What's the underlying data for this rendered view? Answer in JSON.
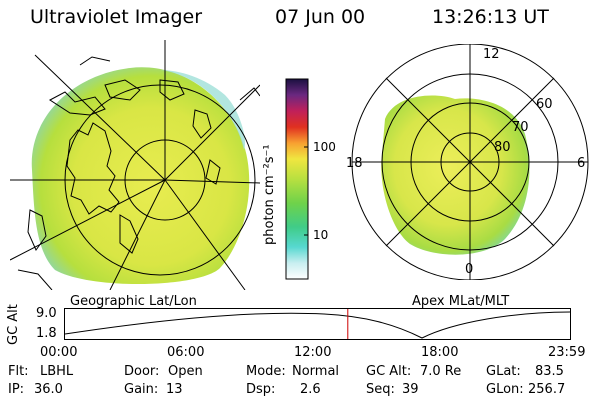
{
  "header": {
    "instrument": "Ultraviolet Imager",
    "date": "07 Jun 00",
    "time": "13:26:13 UT"
  },
  "colorbar": {
    "unit_label": "photon cm⁻²s⁻¹",
    "tick_high": "100",
    "tick_low": "10"
  },
  "left_panel": {
    "label": "Geographic Lat/Lon"
  },
  "right_panel": {
    "label": "Apex MLat/MLT",
    "mlt_labels": {
      "top": "12",
      "left": "18",
      "right": "6",
      "bottom": "0"
    },
    "lat_labels": [
      "60",
      "70",
      "80"
    ]
  },
  "timeline": {
    "ylabel": "GC Alt",
    "y_high": "9.0",
    "y_low": "1.8",
    "ticks": [
      "00:00",
      "06:00",
      "12:00",
      "18:00",
      "23:59"
    ],
    "current_fraction": 0.56
  },
  "status": {
    "flt_label": "Flt:",
    "flt_value": "LBHL",
    "ip_label": "IP:",
    "ip_value": "36.0",
    "door_label": "Door:",
    "door_value": "Open",
    "gain_label": "Gain:",
    "gain_value": "13",
    "mode_label": "Mode:",
    "mode_value": "Normal",
    "dsp_label": "Dsp:",
    "dsp_value": "2.6",
    "gcalt_label": "GC Alt:",
    "gcalt_value": "7.0 Re",
    "seq_label": "Seq:",
    "seq_value": "39",
    "glat_label": "GLat:",
    "glat_value": "83.5",
    "glon_label": "GLon:",
    "glon_value": "256.7"
  },
  "colors": {
    "image_base": "#dfe84a",
    "image_green": "#9ad43a",
    "image_edge": "#7fdcc8",
    "marker": "#cc0000"
  }
}
